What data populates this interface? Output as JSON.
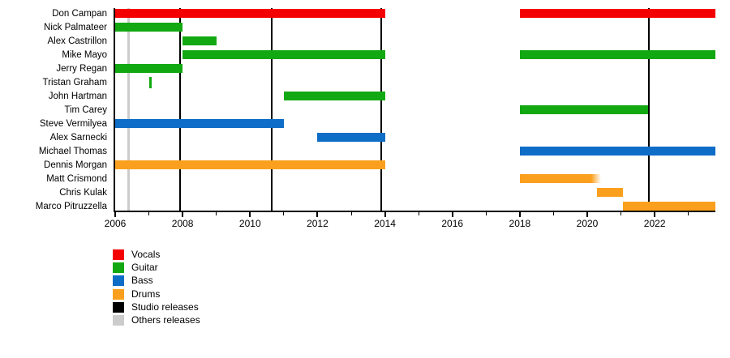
{
  "chart_data": {
    "type": "timeline-gantt",
    "title": "",
    "x_axis": {
      "min": 2006,
      "max": 2023.8,
      "label_years": [
        2006,
        2008,
        2010,
        2012,
        2014,
        2016,
        2018,
        2020,
        2022
      ],
      "minor_tick_interval": 1
    },
    "legend": [
      {
        "label": "Vocals",
        "color": "#f40000"
      },
      {
        "label": "Guitar",
        "color": "#12a812"
      },
      {
        "label": "Bass",
        "color": "#0e6dc6"
      },
      {
        "label": "Drums",
        "color": "#fba01e"
      },
      {
        "label": "Studio releases",
        "color": "#000000"
      },
      {
        "label": "Others releases",
        "color": "#cccccc"
      }
    ],
    "members": [
      {
        "name": "Don Campan",
        "role": "Vocals",
        "spans": [
          [
            2006,
            2014
          ],
          [
            2018,
            2023.8
          ]
        ]
      },
      {
        "name": "Nick Palmateer",
        "role": "Guitar",
        "spans": [
          [
            2006,
            2008
          ]
        ]
      },
      {
        "name": "Alex Castrillon",
        "role": "Guitar",
        "spans": [
          [
            2008,
            2009
          ]
        ]
      },
      {
        "name": "Mike Mayo",
        "role": "Guitar",
        "spans": [
          [
            2008,
            2014
          ],
          [
            2018,
            2023.8
          ]
        ]
      },
      {
        "name": "Jerry Regan",
        "role": "Guitar",
        "spans": [
          [
            2006,
            2008
          ]
        ]
      },
      {
        "name": "Tristan Graham",
        "role": "Guitar",
        "spans": [
          [
            2007.0,
            2007.08
          ]
        ]
      },
      {
        "name": "John Hartman",
        "role": "Guitar",
        "spans": [
          [
            2011,
            2014
          ]
        ]
      },
      {
        "name": "Tim Carey",
        "role": "Guitar",
        "spans": [
          [
            2018,
            2021.8
          ]
        ]
      },
      {
        "name": "Steve Vermilyea",
        "role": "Bass",
        "spans": [
          [
            2006,
            2011
          ]
        ]
      },
      {
        "name": "Alex Sarnecki",
        "role": "Bass",
        "spans": [
          [
            2012,
            2014
          ]
        ]
      },
      {
        "name": "Michael Thomas",
        "role": "Bass",
        "spans": [
          [
            2018,
            2023.8
          ]
        ]
      },
      {
        "name": "Dennis Morgan",
        "role": "Drums",
        "spans": [
          [
            2006,
            2014
          ]
        ]
      },
      {
        "name": "Matt Crismond",
        "role": "Drums",
        "spans": [
          [
            2018,
            2020.4
          ]
        ],
        "fade_right": true
      },
      {
        "name": "Chris Kulak",
        "role": "Drums",
        "spans": [
          [
            2020.3,
            2021.05
          ]
        ]
      },
      {
        "name": "Marco Pitruzzella",
        "role": "Drums",
        "spans": [
          [
            2021.05,
            2023.8
          ]
        ]
      }
    ],
    "release_lines": {
      "studio": [
        2007.93,
        2010.65,
        2013.9,
        2021.82
      ],
      "others": [
        2006.4
      ]
    }
  }
}
